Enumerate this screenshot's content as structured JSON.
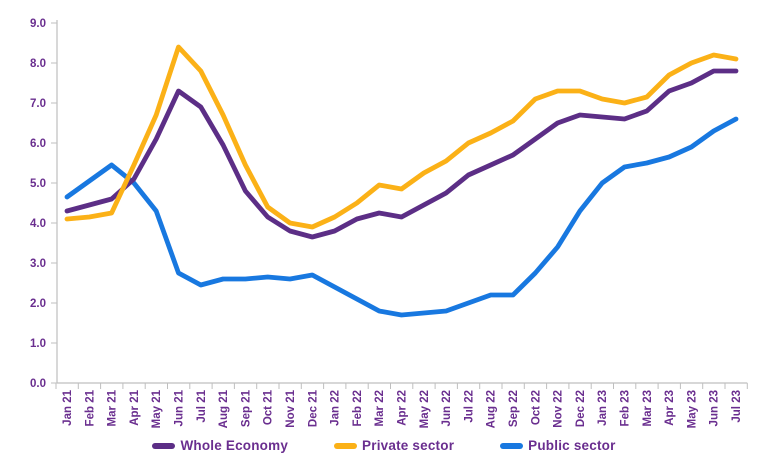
{
  "chart_data": {
    "type": "line",
    "title": "",
    "categories": [
      "Jan 21",
      "Feb 21",
      "Mar 21",
      "Apr 21",
      "May 21",
      "Jun 21",
      "Jul 21",
      "Aug 21",
      "Sep 21",
      "Oct 21",
      "Nov 21",
      "Dec 21",
      "Jan 22",
      "Feb 22",
      "Mar 22",
      "Apr 22",
      "May 22",
      "Jun 22",
      "Jul 22",
      "Aug 22",
      "Sep 22",
      "Oct 22",
      "Nov 22",
      "Dec 22",
      "Jan 23",
      "Feb 23",
      "Mar 23",
      "Apr 23",
      "May 23",
      "Jun 23",
      "Jul 23"
    ],
    "series": [
      {
        "name": "Whole Economy",
        "color": "#5c2e86",
        "values": [
          4.3,
          4.45,
          4.6,
          5.1,
          6.1,
          7.3,
          6.9,
          5.95,
          4.8,
          4.15,
          3.8,
          3.65,
          3.8,
          4.1,
          4.25,
          4.15,
          4.45,
          4.75,
          5.2,
          5.45,
          5.7,
          6.1,
          6.5,
          6.7,
          6.65,
          6.6,
          6.8,
          7.3,
          7.5,
          7.8,
          7.8
        ]
      },
      {
        "name": "Private sector",
        "color": "#fbb117",
        "values": [
          4.1,
          4.15,
          4.25,
          5.45,
          6.7,
          8.4,
          7.8,
          6.7,
          5.45,
          4.4,
          4.0,
          3.9,
          4.15,
          4.5,
          4.95,
          4.85,
          5.25,
          5.55,
          6.0,
          6.25,
          6.55,
          7.1,
          7.3,
          7.3,
          7.1,
          7.0,
          7.15,
          7.7,
          8.0,
          8.2,
          8.1
        ]
      },
      {
        "name": "Public sector",
        "color": "#1878e0",
        "values": [
          4.65,
          5.05,
          5.45,
          5.0,
          4.3,
          2.75,
          2.45,
          2.6,
          2.6,
          2.65,
          2.6,
          2.7,
          2.4,
          2.1,
          1.8,
          1.7,
          1.75,
          1.8,
          2.0,
          2.2,
          2.2,
          2.75,
          3.4,
          4.3,
          5.0,
          5.4,
          5.5,
          5.65,
          5.9,
          6.3,
          6.6
        ]
      }
    ],
    "draw_order": [
      2,
      0,
      1
    ],
    "ylim": [
      0,
      9
    ],
    "ytick_step": 1,
    "ytick_decimals": 1,
    "grid": false,
    "legend_position": "bottom",
    "colors": {
      "axis": "#bfbfbf",
      "labels": "#6a2e8f",
      "background": "#ffffff"
    }
  }
}
